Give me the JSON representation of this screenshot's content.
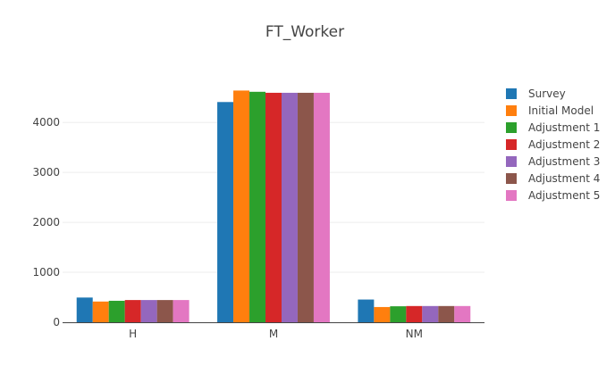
{
  "chart_data": {
    "type": "bar",
    "title": "FT_Worker",
    "xlabel": "",
    "ylabel": "",
    "categories": [
      "H",
      "M",
      "NM"
    ],
    "ylim": [
      0,
      4880
    ],
    "yticks": [
      0,
      1000,
      2000,
      3000,
      4000
    ],
    "ytick_labels": [
      "0",
      "1000",
      "2000",
      "3000",
      "4000"
    ],
    "grid": true,
    "legend_position": "right",
    "series": [
      {
        "name": "Survey",
        "color": "#1f77b4",
        "values": [
          495,
          4410,
          455
        ]
      },
      {
        "name": "Initial Model",
        "color": "#ff7f0e",
        "values": [
          415,
          4640,
          305
        ]
      },
      {
        "name": "Adjustment 1",
        "color": "#2ca02c",
        "values": [
          430,
          4615,
          320
        ]
      },
      {
        "name": "Adjustment 2",
        "color": "#d62728",
        "values": [
          445,
          4595,
          325
        ]
      },
      {
        "name": "Adjustment 3",
        "color": "#9467bd",
        "values": [
          445,
          4595,
          325
        ]
      },
      {
        "name": "Adjustment 4",
        "color": "#8c564b",
        "values": [
          445,
          4595,
          325
        ]
      },
      {
        "name": "Adjustment 5",
        "color": "#e377c2",
        "values": [
          445,
          4595,
          325
        ]
      }
    ]
  }
}
